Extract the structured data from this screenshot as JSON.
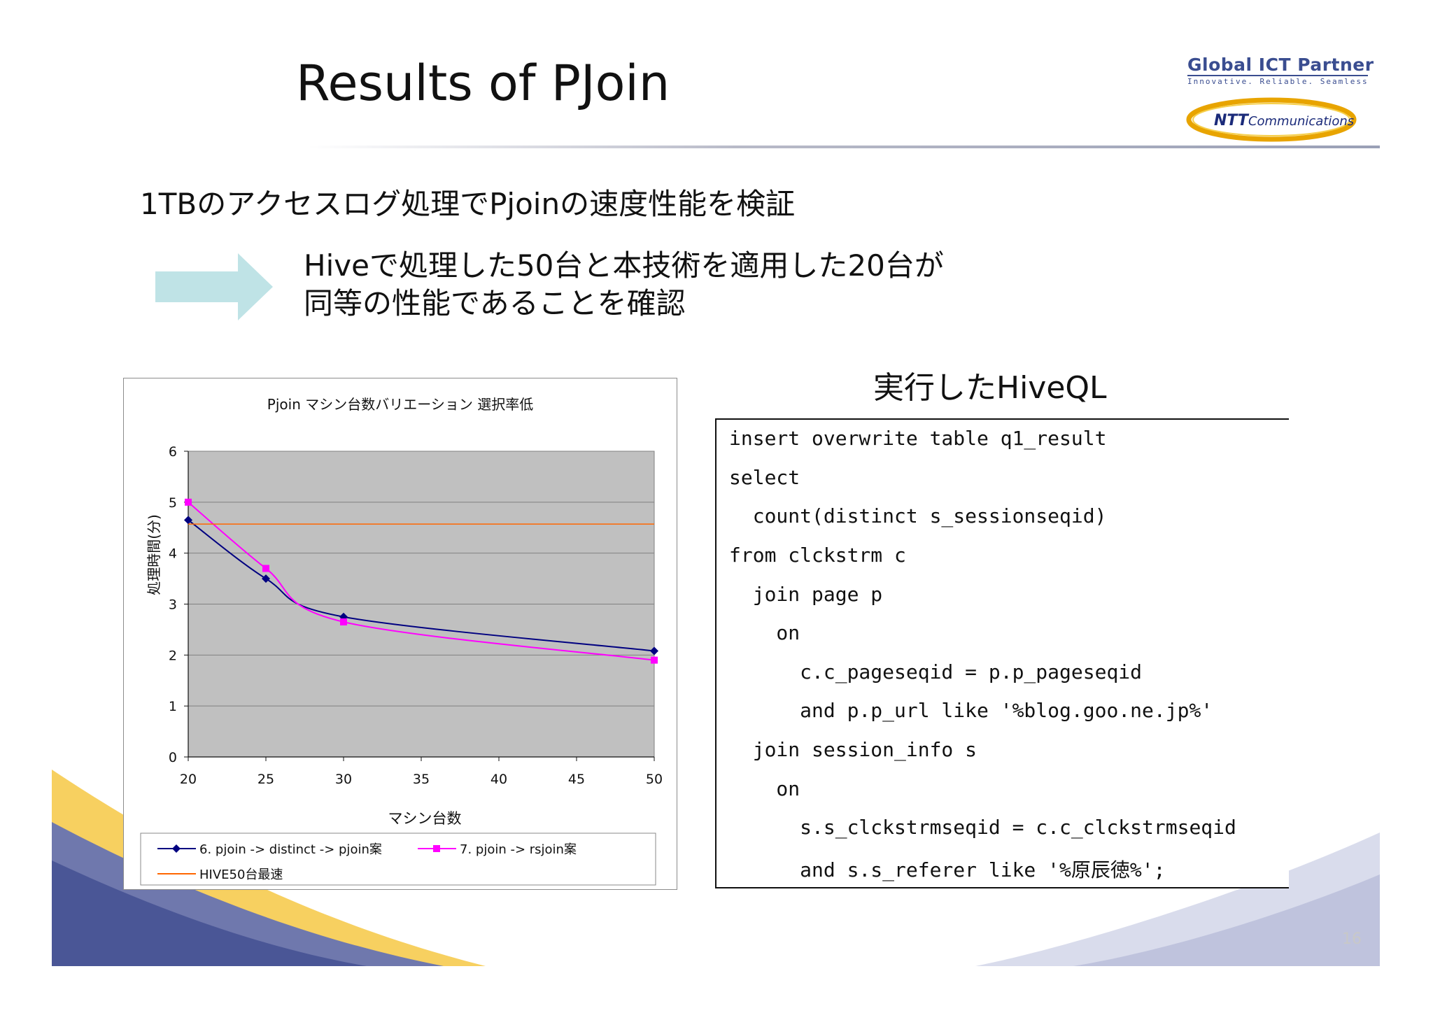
{
  "slide": {
    "title": "Results of PJoin",
    "subtitle": "1TBのアクセスログ処理でPjoinの速度性能を検証",
    "message_lines": [
      "Hiveで処理した50台と本技術を適用した20台が",
      "同等の性能であることを確認"
    ],
    "page_number": "16"
  },
  "logo": {
    "name": "Global ICT Partner",
    "tagline": "Innovative. Reliable. Seamless",
    "ntt_brand": "NTT",
    "ntt_suffix": "Communications"
  },
  "hiveql": {
    "title": "実行したHiveQL",
    "lines": [
      "insert overwrite table q1_result",
      "select",
      "  count(distinct s_sessionseqid)",
      "from clckstrm c",
      "  join page p",
      "    on",
      "      c.c_pageseqid = p.p_pageseqid",
      "      and p.p_url like '%blog.goo.ne.jp%'",
      "  join session_info s",
      "    on",
      "      s.s_clckstrmseqid = c.c_clckstrmseqid",
      "      and s.s_referer like '%原辰徳%';"
    ]
  },
  "colors": {
    "plot_bg": "#c0c0c0",
    "series1": "#000080",
    "series2": "#ff00ff",
    "hive_line": "#ff6600",
    "arrow": "#bfe3e6"
  },
  "chart_data": {
    "type": "line",
    "title": "Pjoin マシン台数バリエーション 選択率低",
    "xlabel": "マシン台数",
    "ylabel": "処理時間(分)",
    "xlim": [
      20,
      50
    ],
    "ylim": [
      0,
      6
    ],
    "xticks": [
      20,
      25,
      30,
      35,
      40,
      45,
      50
    ],
    "yticks": [
      0,
      1,
      2,
      3,
      4,
      5,
      6
    ],
    "grid": true,
    "legend": "bottom",
    "series": [
      {
        "name": "6. pjoin -> distinct -> pjoin案",
        "marker": "diamond",
        "x": [
          20,
          25,
          30,
          50
        ],
        "y": [
          4.65,
          3.5,
          2.75,
          2.08
        ]
      },
      {
        "name": "7. pjoin -> rsjoin案",
        "marker": "square",
        "x": [
          20,
          25,
          30,
          50
        ],
        "y": [
          5.0,
          3.7,
          2.65,
          1.9
        ]
      },
      {
        "name": "HIVE50台最速",
        "marker": "none",
        "x": [
          20,
          50
        ],
        "y": [
          4.57,
          4.57
        ]
      }
    ]
  }
}
